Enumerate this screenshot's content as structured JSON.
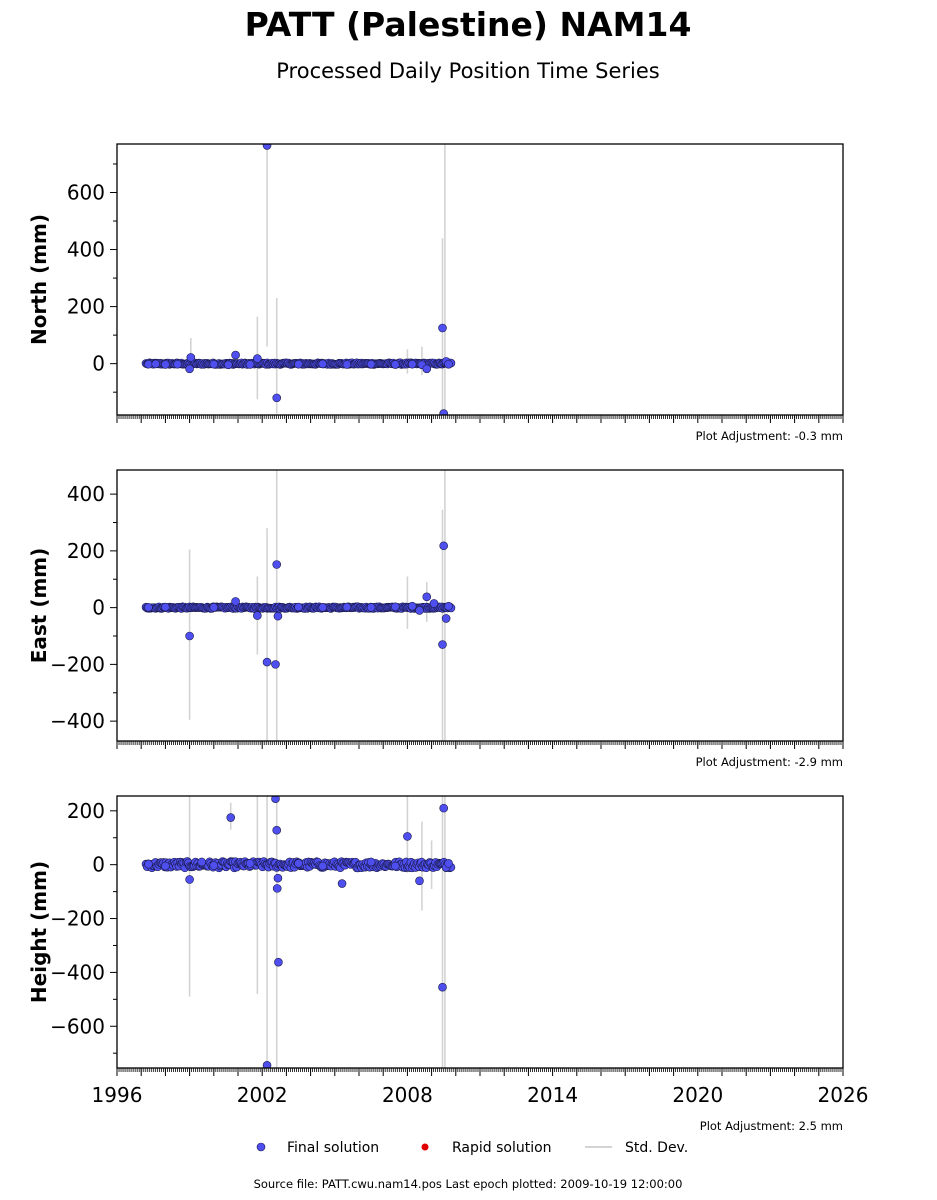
{
  "figure": {
    "title": "PATT (Palestine) NAM14",
    "subtitle": "Processed Daily Position Time Series",
    "footer": "Source file: PATT.cwu.nam14.pos  Last epoch plotted: 2009-10-19 12:00:00"
  },
  "legend": {
    "final": "Final solution",
    "rapid": "Rapid solution",
    "std": "Std. Dev."
  },
  "colors": {
    "final_fill": "#4f4ff0",
    "final_edge": "#1a1a4a",
    "rapid": "#e00000",
    "std": "#d3d3d3"
  },
  "chart_data": [
    {
      "type": "scatter",
      "ylabel": "North (mm)",
      "ylim": [
        -180,
        770
      ],
      "yticks": [
        0,
        200,
        400,
        600
      ],
      "xlim": [
        1996,
        2026
      ],
      "xticks": [
        1996,
        2002,
        2008,
        2014,
        2020,
        2026
      ],
      "adjustment": "Plot Adjustment: -0.3 mm",
      "data_span": [
        1997.2,
        2009.8
      ],
      "noise_mm": 3,
      "series": [
        {
          "name": "Final solution",
          "points": [
            [
              1997.3,
              -2
            ],
            [
              1997.6,
              -1
            ],
            [
              1998.0,
              -3
            ],
            [
              1998.5,
              -2
            ],
            [
              1999.0,
              -18
            ],
            [
              1999.05,
              22
            ],
            [
              2000.0,
              -2
            ],
            [
              2000.6,
              -4
            ],
            [
              2000.9,
              30
            ],
            [
              2001.5,
              -3
            ],
            [
              2001.8,
              18
            ],
            [
              2002.2,
              765
            ],
            [
              2002.6,
              -120
            ],
            [
              2003.5,
              -2
            ],
            [
              2004.5,
              -1
            ],
            [
              2005.5,
              -3
            ],
            [
              2006.5,
              -2
            ],
            [
              2007.5,
              -3
            ],
            [
              2008.2,
              -2
            ],
            [
              2008.6,
              -4
            ],
            [
              2008.8,
              -18
            ],
            [
              2009.45,
              125
            ],
            [
              2009.5,
              -175
            ],
            [
              2009.6,
              8
            ],
            [
              2009.7,
              -2
            ]
          ]
        }
      ],
      "std_dev_bars": [
        [
          1999.05,
          0,
          90
        ],
        [
          2001.8,
          -125,
          165
        ],
        [
          2002.2,
          60,
          770
        ],
        [
          2002.6,
          -175,
          230
        ],
        [
          2008.0,
          -35,
          50
        ],
        [
          2008.6,
          -40,
          60
        ],
        [
          2009.45,
          -180,
          440
        ],
        [
          2009.55,
          -180,
          770
        ]
      ]
    },
    {
      "type": "scatter",
      "ylabel": "East (mm)",
      "ylim": [
        -470,
        485
      ],
      "yticks": [
        -400,
        -200,
        0,
        200,
        400
      ],
      "xlim": [
        1996,
        2026
      ],
      "xticks": [
        1996,
        2002,
        2008,
        2014,
        2020,
        2026
      ],
      "adjustment": "Plot Adjustment: -2.9 mm",
      "data_span": [
        1997.2,
        2009.8
      ],
      "noise_mm": 3,
      "series": [
        {
          "name": "Final solution",
          "points": [
            [
              1997.3,
              1
            ],
            [
              1998.0,
              2
            ],
            [
              1999.0,
              -100
            ],
            [
              2000.0,
              1
            ],
            [
              2000.9,
              22
            ],
            [
              2001.8,
              -28
            ],
            [
              2002.2,
              -192
            ],
            [
              2002.55,
              -200
            ],
            [
              2002.6,
              152
            ],
            [
              2002.65,
              -30
            ],
            [
              2003.5,
              2
            ],
            [
              2004.5,
              1
            ],
            [
              2005.5,
              2
            ],
            [
              2006.5,
              1
            ],
            [
              2007.5,
              3
            ],
            [
              2008.2,
              5
            ],
            [
              2008.5,
              -10
            ],
            [
              2008.8,
              38
            ],
            [
              2009.1,
              15
            ],
            [
              2009.45,
              -130
            ],
            [
              2009.5,
              218
            ],
            [
              2009.6,
              -38
            ],
            [
              2009.7,
              5
            ]
          ]
        }
      ],
      "std_dev_bars": [
        [
          1999.0,
          -395,
          205
        ],
        [
          2001.8,
          -165,
          110
        ],
        [
          2002.2,
          -470,
          280
        ],
        [
          2002.6,
          -470,
          485
        ],
        [
          2008.0,
          -75,
          110
        ],
        [
          2008.8,
          -50,
          90
        ],
        [
          2009.45,
          -470,
          345
        ],
        [
          2009.55,
          -470,
          485
        ]
      ]
    },
    {
      "type": "scatter",
      "ylabel": "Height (mm)",
      "ylim": [
        -755,
        255
      ],
      "yticks": [
        -600,
        -400,
        -200,
        0,
        200
      ],
      "xlim": [
        1996,
        2026
      ],
      "xticks": [
        1996,
        2002,
        2008,
        2014,
        2020,
        2026
      ],
      "adjustment": "Plot Adjustment: 2.5 mm",
      "data_span": [
        1997.2,
        2009.8
      ],
      "noise_mm": 12,
      "series": [
        {
          "name": "Final solution",
          "points": [
            [
              1997.3,
              2
            ],
            [
              1998.0,
              -5
            ],
            [
              1999.0,
              -55
            ],
            [
              1999.5,
              10
            ],
            [
              2000.0,
              -3
            ],
            [
              2000.7,
              175
            ],
            [
              2001.5,
              5
            ],
            [
              2002.2,
              -745
            ],
            [
              2002.55,
              245
            ],
            [
              2002.6,
              128
            ],
            [
              2002.62,
              -88
            ],
            [
              2002.65,
              -50
            ],
            [
              2002.67,
              -362
            ],
            [
              2003.5,
              5
            ],
            [
              2004.5,
              -5
            ],
            [
              2005.3,
              -70
            ],
            [
              2006.5,
              10
            ],
            [
              2007.5,
              -5
            ],
            [
              2008.0,
              105
            ],
            [
              2008.5,
              -60
            ],
            [
              2009.45,
              -455
            ],
            [
              2009.5,
              210
            ],
            [
              2009.6,
              -10
            ],
            [
              2009.7,
              5
            ]
          ]
        }
      ],
      "std_dev_bars": [
        [
          1999.0,
          -490,
          255
        ],
        [
          2000.7,
          130,
          230
        ],
        [
          2001.8,
          -480,
          255
        ],
        [
          2002.2,
          -755,
          255
        ],
        [
          2002.6,
          -755,
          255
        ],
        [
          2008.0,
          -30,
          255
        ],
        [
          2008.6,
          -170,
          160
        ],
        [
          2009.0,
          -90,
          90
        ],
        [
          2009.45,
          -755,
          255
        ],
        [
          2009.55,
          -755,
          255
        ]
      ]
    }
  ]
}
